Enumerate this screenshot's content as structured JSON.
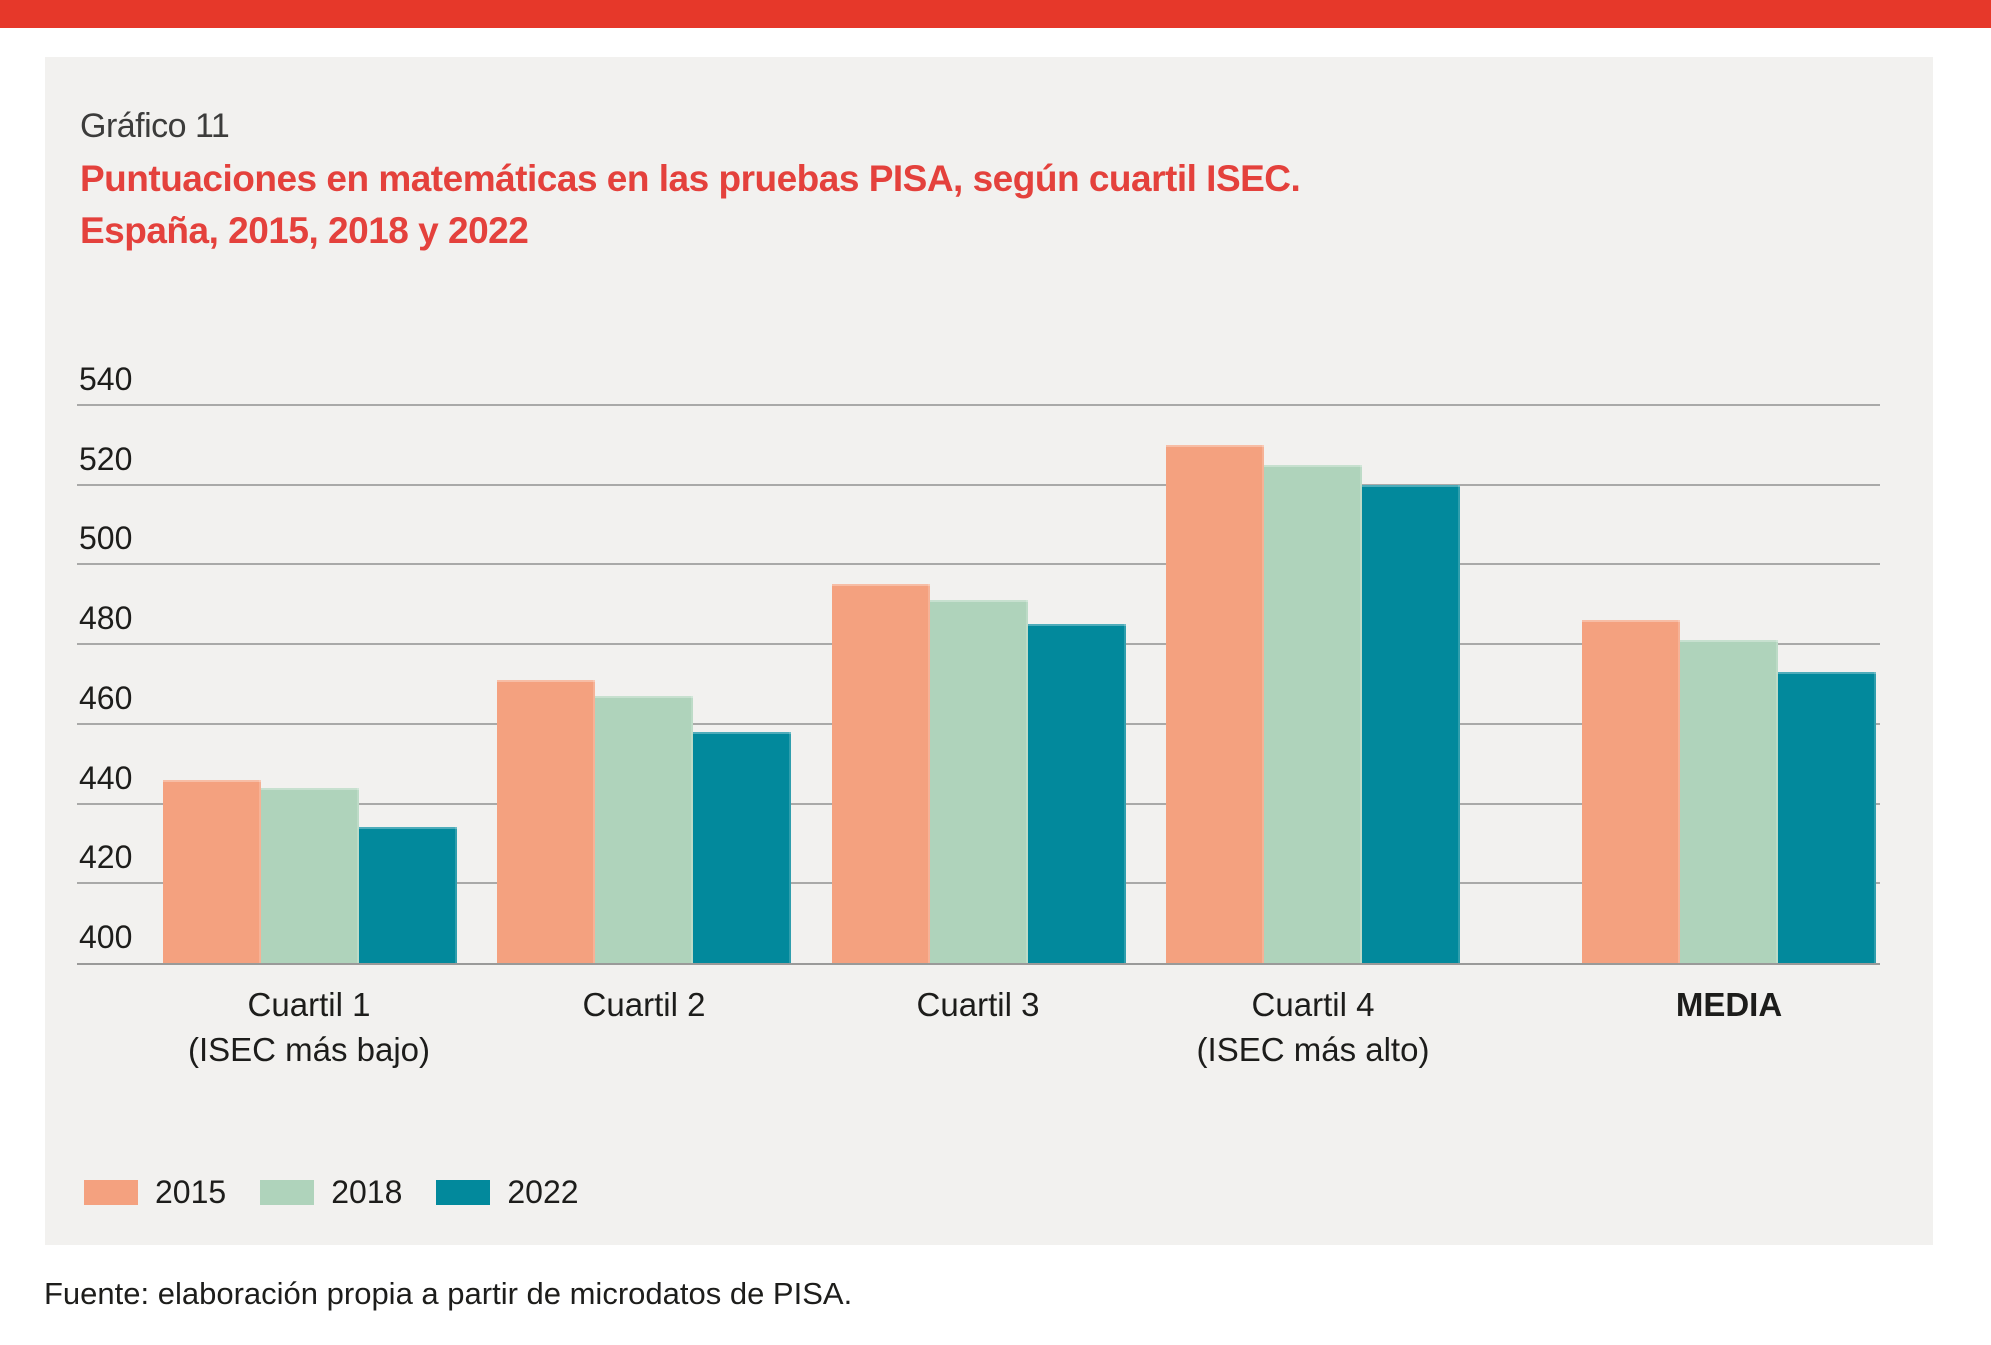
{
  "page": {
    "accent_bar_color": "#e6382a"
  },
  "header": {
    "kicker": "Gráfico 11",
    "title_line1": "Puntuaciones en matemáticas en las pruebas PISA, según cuartil ISEC.",
    "title_line2": "España, 2015, 2018 y 2022",
    "title_color": "#e4413c"
  },
  "chart_data": {
    "type": "bar",
    "title": "Puntuaciones en matemáticas en las pruebas PISA, según cuartil ISEC. España, 2015, 2018 y 2022",
    "categories": [
      {
        "label": "Cuartil 1",
        "sublabel": "(ISEC más bajo)",
        "emphasis": false
      },
      {
        "label": "Cuartil 2",
        "sublabel": "",
        "emphasis": false
      },
      {
        "label": "Cuartil 3",
        "sublabel": "",
        "emphasis": false
      },
      {
        "label": "Cuartil 4",
        "sublabel": "(ISEC más alto)",
        "emphasis": false
      },
      {
        "label": "MEDIA",
        "sublabel": "",
        "emphasis": true
      }
    ],
    "series": [
      {
        "name": "2015",
        "color": "#f4a17f",
        "values": [
          446,
          471,
          495,
          530,
          486
        ]
      },
      {
        "name": "2018",
        "color": "#afd3bb",
        "values": [
          444,
          467,
          491,
          525,
          481
        ]
      },
      {
        "name": "2022",
        "color": "#02899c",
        "values": [
          434,
          458,
          485,
          520,
          473
        ]
      }
    ],
    "ylim": [
      400,
      540
    ],
    "yticks": [
      400,
      420,
      440,
      460,
      480,
      500,
      520,
      540
    ],
    "grid": true,
    "gridline_color": "#a9a9a8",
    "legend_position": "bottom-left",
    "ytick_label_position": "above-line-left"
  },
  "footer": {
    "source": "Fuente: elaboración propia a partir de microdatos de PISA."
  }
}
